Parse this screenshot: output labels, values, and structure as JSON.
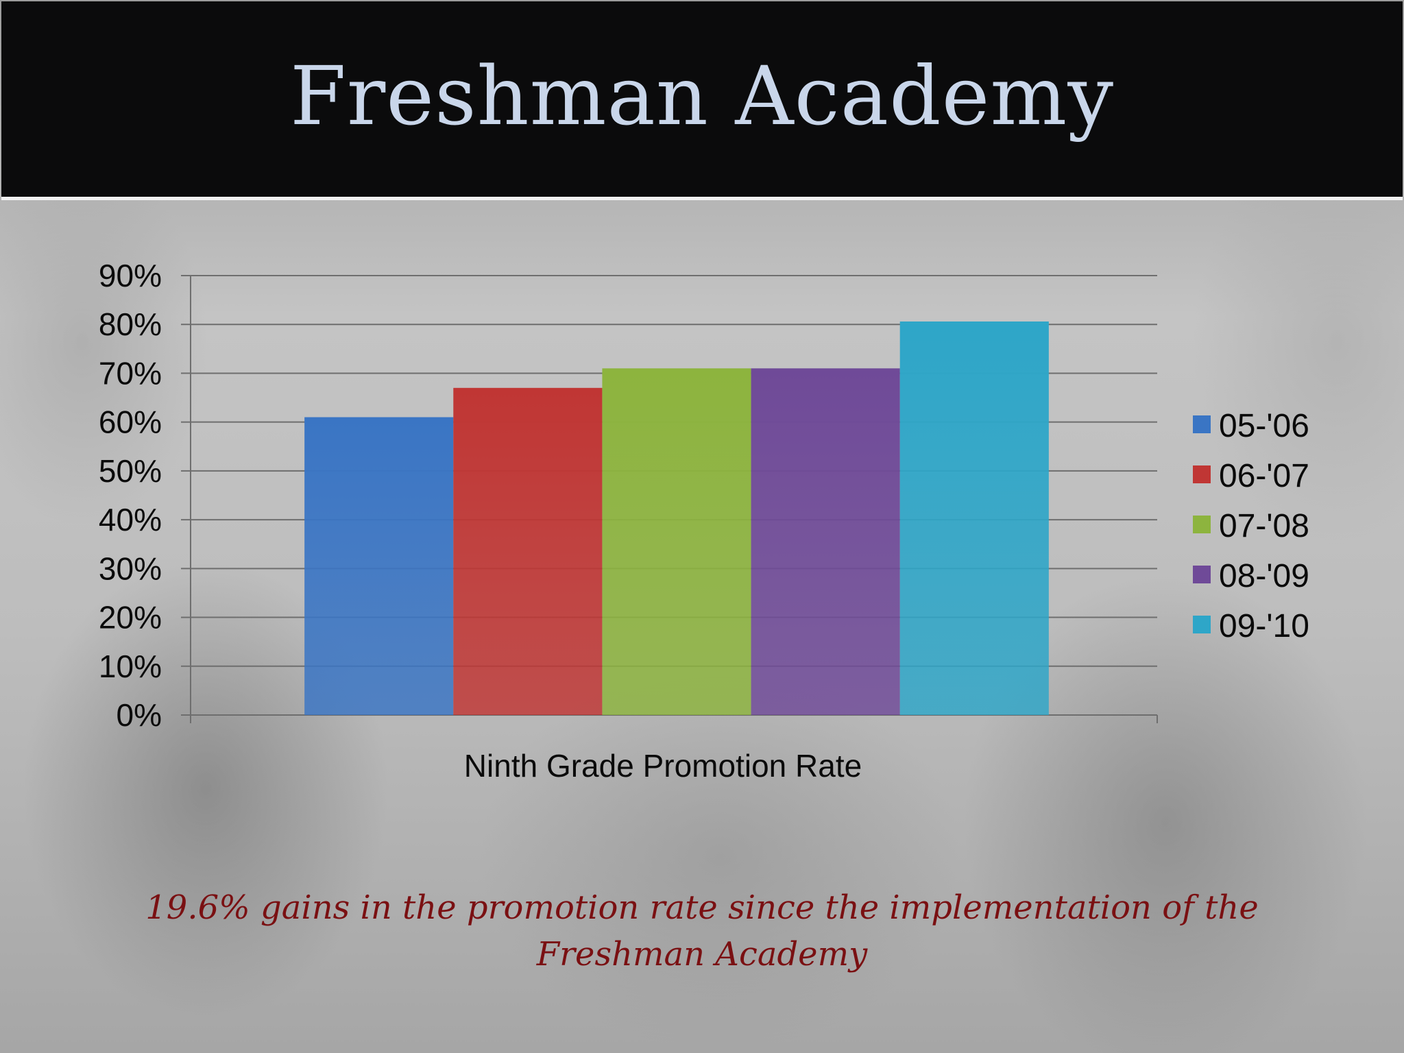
{
  "title": "Freshman Academy",
  "caption": "19.6% gains in the promotion rate since the implementation of the Freshman Academy",
  "chart_data": {
    "type": "bar",
    "categories": [
      "Ninth Grade Promotion Rate"
    ],
    "series": [
      {
        "name": "05-'06",
        "values": [
          0.61
        ],
        "color": "#3a75c4"
      },
      {
        "name": "06-'07",
        "values": [
          0.67
        ],
        "color": "#c03634"
      },
      {
        "name": "07-'08",
        "values": [
          0.71
        ],
        "color": "#8db43e"
      },
      {
        "name": "08-'09",
        "values": [
          0.71
        ],
        "color": "#6f4a98"
      },
      {
        "name": "09-'10",
        "values": [
          0.806
        ],
        "color": "#2ea6c8"
      }
    ],
    "ylim": [
      0,
      0.9
    ],
    "yticks": [
      "0%",
      "10%",
      "20%",
      "30%",
      "40%",
      "50%",
      "60%",
      "70%",
      "80%",
      "90%"
    ],
    "grid": true,
    "legend": "right"
  }
}
